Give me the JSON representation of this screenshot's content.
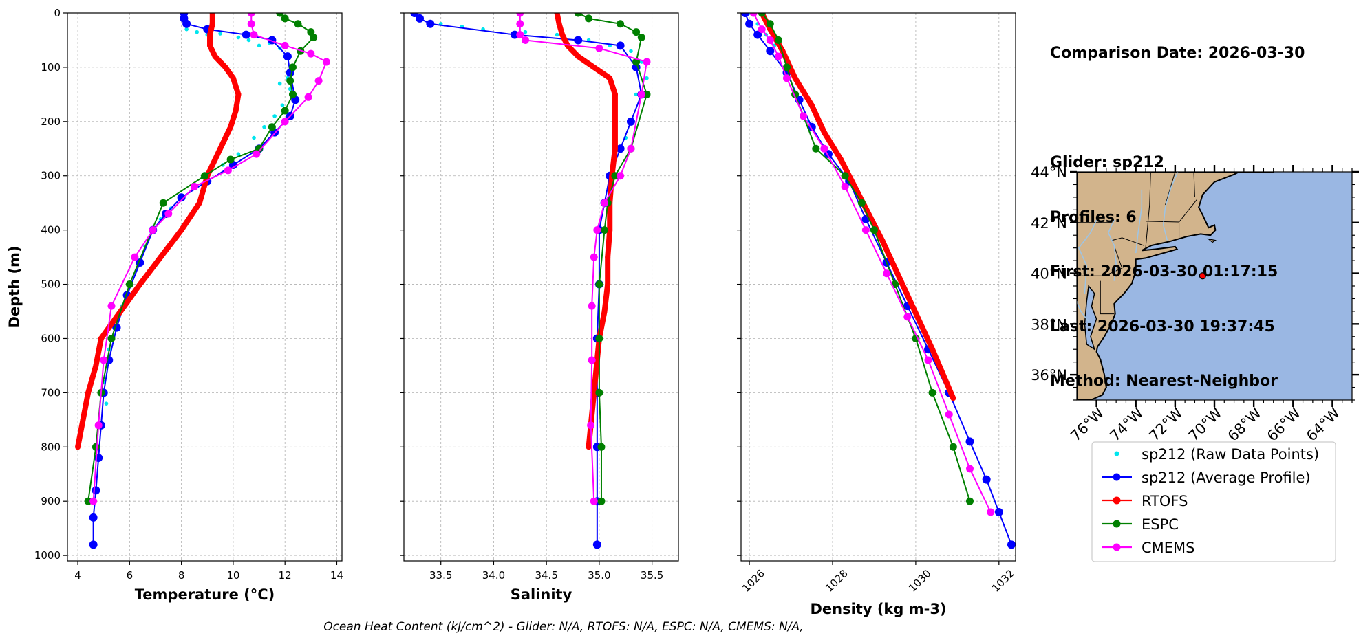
{
  "info": {
    "comparison_date": "Comparison Date: 2026-03-30",
    "glider": "Glider: sp212",
    "profiles": "Profiles: 6",
    "first": "First: 2026-03-30 01:17:15",
    "last": "Last: 2026-03-30 19:37:45",
    "method": "Method: Nearest-Neighbor"
  },
  "footer": "Ocean Heat Content (kJ/cm^2) - Glider: N/A,  RTOFS: N/A,  ESPC: N/A,  CMEMS: N/A,",
  "colors": {
    "raw": "#00e5ee",
    "glider": "#0000ff",
    "rtofs": "#ff0000",
    "espc": "#008000",
    "cmems": "#ff00ff",
    "land": "#d2b48c",
    "ocean": "#9ab7e3",
    "rivers": "#9fc4e3"
  },
  "legend": [
    {
      "key": "raw",
      "label": "sp212 (Raw Data Points)"
    },
    {
      "key": "glider",
      "label": "sp212 (Average Profile)"
    },
    {
      "key": "rtofs",
      "label": "RTOFS"
    },
    {
      "key": "espc",
      "label": "ESPC"
    },
    {
      "key": "cmems",
      "label": "CMEMS"
    }
  ],
  "chart_data": [
    {
      "type": "line",
      "xlabel": "Temperature (°C)",
      "ylabel": "Depth (m)",
      "xlim": [
        3.6,
        14.2
      ],
      "ylim": [
        1010,
        0
      ],
      "xticks": [
        4,
        6,
        8,
        10,
        12,
        14
      ],
      "yticks": [
        0,
        100,
        200,
        300,
        400,
        500,
        600,
        700,
        800,
        900,
        1000
      ],
      "grid": true,
      "series": {
        "raw": [
          [
            8.2,
            30
          ],
          [
            8.6,
            35
          ],
          [
            9.0,
            40
          ],
          [
            9.5,
            38
          ],
          [
            10.2,
            45
          ],
          [
            10.6,
            50
          ],
          [
            11.0,
            60
          ],
          [
            11.4,
            55
          ],
          [
            11.8,
            65
          ],
          [
            12.0,
            80
          ],
          [
            12.3,
            100
          ],
          [
            12.1,
            120
          ],
          [
            11.8,
            130
          ],
          [
            12.2,
            140
          ],
          [
            12.4,
            150
          ],
          [
            11.9,
            170
          ],
          [
            11.6,
            190
          ],
          [
            11.2,
            210
          ],
          [
            10.8,
            230
          ],
          [
            10.2,
            260
          ],
          [
            9.6,
            280
          ],
          [
            9.0,
            300
          ],
          [
            8.6,
            320
          ],
          [
            8.0,
            340
          ],
          [
            7.6,
            360
          ],
          [
            7.2,
            380
          ],
          [
            6.9,
            400
          ],
          [
            6.6,
            430
          ],
          [
            6.3,
            460
          ],
          [
            6.0,
            500
          ],
          [
            5.7,
            540
          ],
          [
            5.4,
            580
          ],
          [
            5.2,
            620
          ],
          [
            5.0,
            680
          ],
          [
            5.1,
            720
          ],
          [
            4.9,
            760
          ],
          [
            4.8,
            800
          ]
        ],
        "glider": [
          [
            8.1,
            0
          ],
          [
            8.1,
            10
          ],
          [
            8.2,
            20
          ],
          [
            9.0,
            30
          ],
          [
            10.5,
            40
          ],
          [
            11.5,
            50
          ],
          [
            12.1,
            80
          ],
          [
            12.2,
            110
          ],
          [
            12.4,
            160
          ],
          [
            12.2,
            190
          ],
          [
            11.6,
            220
          ],
          [
            11.0,
            250
          ],
          [
            10.0,
            280
          ],
          [
            9.0,
            310
          ],
          [
            8.0,
            340
          ],
          [
            7.4,
            370
          ],
          [
            6.9,
            400
          ],
          [
            6.4,
            460
          ],
          [
            5.9,
            520
          ],
          [
            5.5,
            580
          ],
          [
            5.2,
            640
          ],
          [
            5.0,
            700
          ],
          [
            4.9,
            760
          ],
          [
            4.8,
            820
          ],
          [
            4.7,
            880
          ],
          [
            4.6,
            930
          ],
          [
            4.6,
            980
          ]
        ],
        "rtofs": [
          [
            9.2,
            0
          ],
          [
            9.2,
            20
          ],
          [
            9.1,
            40
          ],
          [
            9.1,
            60
          ],
          [
            9.3,
            80
          ],
          [
            9.7,
            100
          ],
          [
            10.0,
            120
          ],
          [
            10.2,
            150
          ],
          [
            10.1,
            180
          ],
          [
            9.9,
            210
          ],
          [
            9.6,
            240
          ],
          [
            9.3,
            270
          ],
          [
            9.0,
            300
          ],
          [
            8.7,
            350
          ],
          [
            8.0,
            400
          ],
          [
            7.2,
            450
          ],
          [
            6.4,
            500
          ],
          [
            5.5,
            560
          ],
          [
            4.9,
            600
          ],
          [
            4.7,
            650
          ],
          [
            4.4,
            700
          ],
          [
            4.2,
            750
          ],
          [
            4.0,
            800
          ]
        ],
        "espc": [
          [
            11.8,
            0
          ],
          [
            12.0,
            10
          ],
          [
            12.5,
            20
          ],
          [
            13.0,
            35
          ],
          [
            13.1,
            45
          ],
          [
            12.6,
            70
          ],
          [
            12.3,
            100
          ],
          [
            12.2,
            125
          ],
          [
            12.3,
            150
          ],
          [
            12.0,
            180
          ],
          [
            11.5,
            210
          ],
          [
            11.0,
            250
          ],
          [
            9.9,
            270
          ],
          [
            8.9,
            300
          ],
          [
            7.3,
            350
          ],
          [
            6.0,
            500
          ],
          [
            5.3,
            600
          ],
          [
            4.9,
            700
          ],
          [
            4.7,
            800
          ],
          [
            4.4,
            900
          ]
        ],
        "cmems": [
          [
            10.7,
            0
          ],
          [
            10.7,
            20
          ],
          [
            10.8,
            40
          ],
          [
            12.0,
            60
          ],
          [
            13.0,
            75
          ],
          [
            13.6,
            90
          ],
          [
            13.3,
            125
          ],
          [
            12.9,
            155
          ],
          [
            12.0,
            200
          ],
          [
            10.9,
            260
          ],
          [
            9.8,
            290
          ],
          [
            8.5,
            320
          ],
          [
            7.5,
            370
          ],
          [
            6.9,
            400
          ],
          [
            6.2,
            450
          ],
          [
            5.3,
            540
          ],
          [
            5.0,
            640
          ],
          [
            4.8,
            760
          ],
          [
            4.6,
            900
          ]
        ]
      }
    },
    {
      "type": "line",
      "xlabel": "Salinity",
      "xlim": [
        33.15,
        35.75
      ],
      "ylim": [
        1010,
        0
      ],
      "xticks": [
        33.5,
        34.0,
        34.5,
        35.0,
        35.5
      ],
      "grid": true,
      "series": {
        "raw": [
          [
            33.5,
            20
          ],
          [
            33.7,
            25
          ],
          [
            33.9,
            30
          ],
          [
            34.3,
            35
          ],
          [
            34.6,
            40
          ],
          [
            34.9,
            50
          ],
          [
            35.1,
            60
          ],
          [
            35.3,
            70
          ],
          [
            35.4,
            90
          ],
          [
            35.45,
            120
          ],
          [
            35.35,
            150
          ],
          [
            35.3,
            200
          ],
          [
            35.25,
            230
          ],
          [
            35.15,
            260
          ],
          [
            35.1,
            300
          ],
          [
            35.05,
            350
          ]
        ],
        "glider": [
          [
            33.25,
            0
          ],
          [
            33.3,
            10
          ],
          [
            33.4,
            20
          ],
          [
            34.2,
            40
          ],
          [
            34.8,
            50
          ],
          [
            35.2,
            60
          ],
          [
            35.35,
            100
          ],
          [
            35.4,
            150
          ],
          [
            35.3,
            200
          ],
          [
            35.2,
            250
          ],
          [
            35.1,
            300
          ],
          [
            35.05,
            350
          ],
          [
            35.0,
            400
          ],
          [
            35.0,
            500
          ],
          [
            34.98,
            600
          ],
          [
            34.98,
            700
          ],
          [
            34.98,
            800
          ],
          [
            34.98,
            900
          ],
          [
            34.98,
            980
          ]
        ],
        "rtofs": [
          [
            34.6,
            0
          ],
          [
            34.62,
            20
          ],
          [
            34.65,
            40
          ],
          [
            34.7,
            60
          ],
          [
            34.8,
            80
          ],
          [
            34.95,
            100
          ],
          [
            35.1,
            120
          ],
          [
            35.15,
            150
          ],
          [
            35.15,
            200
          ],
          [
            35.15,
            250
          ],
          [
            35.12,
            300
          ],
          [
            35.1,
            350
          ],
          [
            35.1,
            400
          ],
          [
            35.08,
            450
          ],
          [
            35.08,
            500
          ],
          [
            35.05,
            550
          ],
          [
            35.0,
            600
          ],
          [
            34.95,
            700
          ],
          [
            34.9,
            800
          ]
        ],
        "espc": [
          [
            34.8,
            0
          ],
          [
            34.9,
            10
          ],
          [
            35.2,
            20
          ],
          [
            35.35,
            35
          ],
          [
            35.4,
            45
          ],
          [
            35.35,
            90
          ],
          [
            35.45,
            150
          ],
          [
            35.3,
            250
          ],
          [
            35.15,
            300
          ],
          [
            35.08,
            350
          ],
          [
            35.05,
            400
          ],
          [
            35.0,
            500
          ],
          [
            35.0,
            600
          ],
          [
            35.0,
            700
          ],
          [
            35.02,
            800
          ],
          [
            35.02,
            900
          ]
        ],
        "cmems": [
          [
            34.25,
            0
          ],
          [
            34.25,
            20
          ],
          [
            34.25,
            40
          ],
          [
            34.3,
            50
          ],
          [
            35.0,
            65
          ],
          [
            35.45,
            90
          ],
          [
            35.4,
            150
          ],
          [
            35.3,
            250
          ],
          [
            35.2,
            300
          ],
          [
            35.05,
            350
          ],
          [
            34.98,
            400
          ],
          [
            34.95,
            450
          ],
          [
            34.93,
            540
          ],
          [
            34.93,
            640
          ],
          [
            34.92,
            760
          ],
          [
            34.95,
            900
          ]
        ]
      }
    },
    {
      "type": "line",
      "xlabel": "Density (kg m-3)",
      "xlim": [
        1025.8,
        1032.4
      ],
      "ylim": [
        1010,
        0
      ],
      "xticks": [
        1026,
        1028,
        1030,
        1032
      ],
      "grid": true,
      "series": {
        "raw": [
          [
            1026.0,
            0
          ],
          [
            1026.2,
            20
          ],
          [
            1026.4,
            40
          ],
          [
            1026.6,
            60
          ],
          [
            1026.9,
            100
          ],
          [
            1027.1,
            150
          ],
          [
            1027.4,
            200
          ],
          [
            1027.8,
            250
          ],
          [
            1028.4,
            300
          ]
        ],
        "glider": [
          [
            1025.9,
            0
          ],
          [
            1026.0,
            20
          ],
          [
            1026.2,
            40
          ],
          [
            1026.5,
            70
          ],
          [
            1026.9,
            110
          ],
          [
            1027.2,
            160
          ],
          [
            1027.5,
            210
          ],
          [
            1027.9,
            260
          ],
          [
            1028.4,
            310
          ],
          [
            1028.8,
            380
          ],
          [
            1029.3,
            460
          ],
          [
            1029.8,
            540
          ],
          [
            1030.3,
            620
          ],
          [
            1030.8,
            700
          ],
          [
            1031.3,
            790
          ],
          [
            1031.7,
            860
          ],
          [
            1032.0,
            920
          ],
          [
            1032.3,
            980
          ]
        ],
        "rtofs": [
          [
            1026.3,
            0
          ],
          [
            1026.5,
            30
          ],
          [
            1026.8,
            70
          ],
          [
            1027.1,
            120
          ],
          [
            1027.5,
            170
          ],
          [
            1027.8,
            220
          ],
          [
            1028.2,
            270
          ],
          [
            1028.6,
            330
          ],
          [
            1029.2,
            420
          ],
          [
            1029.8,
            520
          ],
          [
            1030.4,
            620
          ],
          [
            1030.9,
            710
          ]
        ],
        "espc": [
          [
            1026.3,
            0
          ],
          [
            1026.5,
            20
          ],
          [
            1026.7,
            50
          ],
          [
            1026.9,
            100
          ],
          [
            1027.1,
            150
          ],
          [
            1027.6,
            250
          ],
          [
            1028.3,
            300
          ],
          [
            1028.7,
            350
          ],
          [
            1029.0,
            400
          ],
          [
            1029.5,
            500
          ],
          [
            1030.0,
            600
          ],
          [
            1030.4,
            700
          ],
          [
            1030.9,
            800
          ],
          [
            1031.3,
            900
          ]
        ],
        "cmems": [
          [
            1026.1,
            0
          ],
          [
            1026.3,
            30
          ],
          [
            1026.5,
            50
          ],
          [
            1026.7,
            80
          ],
          [
            1026.9,
            120
          ],
          [
            1027.3,
            190
          ],
          [
            1027.8,
            250
          ],
          [
            1028.3,
            320
          ],
          [
            1028.8,
            400
          ],
          [
            1029.3,
            480
          ],
          [
            1029.8,
            560
          ],
          [
            1030.3,
            640
          ],
          [
            1030.8,
            740
          ],
          [
            1031.3,
            840
          ],
          [
            1031.8,
            920
          ]
        ]
      }
    },
    {
      "type": "map",
      "xticks": [
        "76°W",
        "74°W",
        "72°W",
        "70°W",
        "68°W",
        "66°W",
        "64°W"
      ],
      "yticks": [
        "44°N",
        "42°N",
        "40°N",
        "38°N",
        "36°N"
      ],
      "lon_range": [
        -77,
        -63
      ],
      "lat_range": [
        35,
        44
      ],
      "glider_position": {
        "lon": -70.6,
        "lat": 39.9
      }
    }
  ]
}
